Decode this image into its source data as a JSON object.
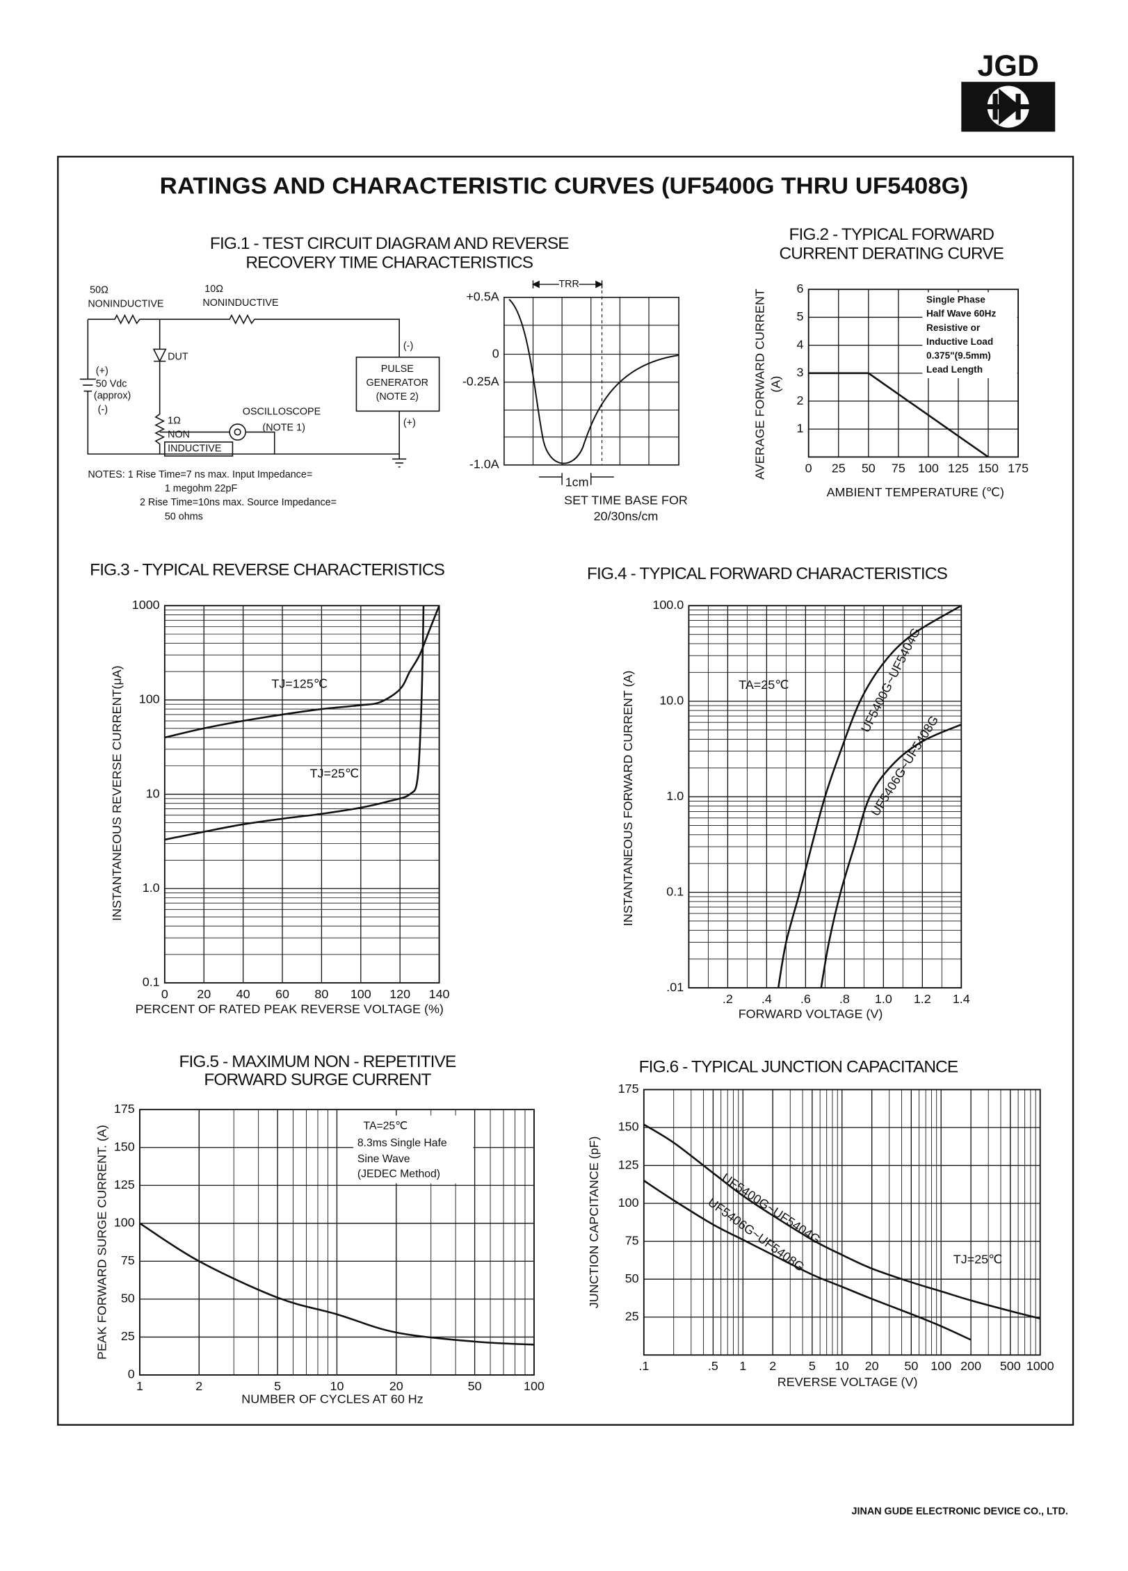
{
  "header": {
    "logo": "JGD"
  },
  "title": "RATINGS AND CHARACTERISTIC CURVES (UF5400G THRU UF5408G)",
  "fig1": {
    "title": [
      "FIG.1 - TEST CIRCUIT DIAGRAM AND REVERSE",
      "RECOVERY TIME CHARACTERISTICS"
    ],
    "circuit": {
      "r1_value": "50Ω",
      "r1_type": "NONINDUCTIVE",
      "r2_value": "10Ω",
      "r2_type": "NONINDUCTIVE",
      "source": [
        "(+)",
        "50 Vdc",
        "(approx)",
        "(-)"
      ],
      "dut": "DUT",
      "generator": [
        "PULSE",
        "GENERATOR",
        "(NOTE 2)"
      ],
      "generator_minus": "(-)",
      "generator_plus": "(+)",
      "r3": [
        "1Ω",
        "NON",
        "INDUCTIVE"
      ],
      "scope": [
        "OSCILLOSCOPE",
        "(NOTE 1)"
      ]
    },
    "notes": [
      "NOTES: 1 Rise Time=7 ns max. Input Impedance=",
      "1 megohm 22pF",
      "2 Rise Time=10ns max. Source Impedance=",
      "50 ohms"
    ],
    "waveform": {
      "trr": "TRR",
      "levels": [
        "+0.5A",
        "0",
        "-0.25A",
        "-1.0A"
      ],
      "scale": "1cm",
      "caption": [
        "SET TIME BASE FOR",
        "20/30ns/cm"
      ]
    }
  },
  "chart_data": [
    {
      "type": "line",
      "title": [
        "FIG.2 - TYPICAL FORWARD",
        "CURRENT DERATING CURVE"
      ],
      "ylabel": [
        "AVERAGE FORWARD CURRENT",
        "(A)"
      ],
      "xlabel": "AMBIENT TEMPERATURE (℃)",
      "xlim": [
        0,
        175
      ],
      "xticks": [
        0,
        25,
        50,
        75,
        100,
        125,
        150,
        175
      ],
      "ylim": [
        0,
        6
      ],
      "yticks": [
        1,
        2,
        3,
        4,
        5,
        6
      ],
      "grid": true,
      "annotations": [
        "Single Phase",
        "Half Wave 60Hz",
        "Resistive or",
        "Inductive Load",
        "0.375\"(9.5mm)",
        "Lead Length"
      ],
      "series": [
        {
          "color": "#111111",
          "x": [
            0,
            50,
            150
          ],
          "values": [
            3,
            3,
            0
          ]
        }
      ]
    },
    {
      "type": "line",
      "title": [
        "FIG.3 - TYPICAL REVERSE CHARACTERISTICS"
      ],
      "ylabel": "INSTANTANEOUS REVERSE CURRENT(μA)",
      "xlabel": "PERCENT OF RATED  PEAK REVERSE VOLTAGE (%)",
      "xlim": [
        0,
        140
      ],
      "xticks": [
        0,
        20,
        40,
        60,
        80,
        100,
        120,
        140
      ],
      "ylim": [
        0.1,
        1000
      ],
      "yscale": "log",
      "yticks": [
        0.1,
        {
          "value": 1,
          "label": "1.0"
        },
        10,
        100,
        1000
      ],
      "grid": true,
      "minor_grid": [
        "y"
      ],
      "series": [
        {
          "name": "TJ=125℃",
          "color": "#111111",
          "x": [
            0,
            20,
            40,
            60,
            80,
            100,
            110,
            120,
            125,
            130,
            135,
            140
          ],
          "values": [
            40,
            50,
            60,
            70,
            80,
            88,
            95,
            130,
            200,
            300,
            550,
            1000
          ]
        },
        {
          "name": "TJ=25℃",
          "color": "#111111",
          "x": [
            0,
            20,
            40,
            60,
            80,
            100,
            115,
            125,
            129,
            131,
            132
          ],
          "values": [
            3.3,
            4,
            4.8,
            5.5,
            6.2,
            7.2,
            8.5,
            10,
            15,
            100,
            1000
          ]
        }
      ]
    },
    {
      "type": "line",
      "title": [
        "FIG.4 - TYPICAL FORWARD CHARACTERISTICS"
      ],
      "ylabel": "INSTANTANEOUS FORWARD CURRENT (A)",
      "xlabel": "FORWARD VOLTAGE (V)",
      "xlim": [
        0,
        1.4
      ],
      "xticks": [
        {
          "value": 0.2,
          "label": ".2"
        },
        {
          "value": 0.4,
          "label": ".4"
        },
        {
          "value": 0.6,
          "label": ".6"
        },
        {
          "value": 0.8,
          "label": ".8"
        },
        {
          "value": 1,
          "label": "1.0"
        },
        1.2,
        1.4
      ],
      "ylim": [
        0.01,
        100
      ],
      "yscale": "log",
      "yticks": [
        {
          "value": 0.01,
          "label": ".01"
        },
        0.1,
        {
          "value": 1,
          "label": "1.0"
        },
        {
          "value": 10,
          "label": "10.0"
        },
        {
          "value": 100,
          "label": "100.0"
        }
      ],
      "grid": true,
      "minor_grid": [
        "x",
        "y"
      ],
      "annotations": [
        "TA=25℃"
      ],
      "series": [
        {
          "name": "UF5400G~UF5404G",
          "color": "#111111",
          "x": [
            0.46,
            0.5,
            0.57,
            0.63,
            0.7,
            0.78,
            0.88,
            1.0,
            1.15,
            1.4
          ],
          "values": [
            0.01,
            0.03,
            0.1,
            0.3,
            1,
            3,
            10,
            25,
            50,
            100
          ]
        },
        {
          "name": "UF5406G~UF5408G",
          "color": "#111111",
          "x": [
            0.68,
            0.72,
            0.78,
            0.85,
            0.93,
            1.05,
            1.2,
            1.4
          ],
          "values": [
            0.01,
            0.03,
            0.1,
            0.3,
            1,
            2.2,
            3.8,
            5.7
          ]
        }
      ]
    },
    {
      "type": "line",
      "title": [
        "FIG.5 - MAXIMUM NON - REPETITIVE",
        "FORWARD SURGE CURRENT"
      ],
      "ylabel": "PEAK FORWARD SURGE CURRENT. (A)",
      "xlabel": "NUMBER OF CYCLES AT 60 Hz",
      "xlim": [
        1,
        100
      ],
      "xscale": "log",
      "xticks": [
        1,
        2,
        5,
        10,
        20,
        50,
        100
      ],
      "ylim": [
        0,
        175
      ],
      "yticks": [
        0,
        25,
        50,
        75,
        100,
        125,
        150,
        175
      ],
      "grid": true,
      "minor_grid": [
        "x"
      ],
      "annotations": [
        "TA=25℃",
        "8.3ms Single Hafe",
        "Sine Wave",
        "(JEDEC Method)"
      ],
      "series": [
        {
          "color": "#111111",
          "x": [
            1,
            2,
            5,
            10,
            20,
            50,
            100
          ],
          "values": [
            100,
            75,
            51,
            40,
            28,
            22,
            20
          ]
        }
      ]
    },
    {
      "type": "line",
      "title": [
        "FIG.6 - TYPICAL JUNCTION CAPACITANCE"
      ],
      "ylabel": "JUNCTION CAPCITANCE (pF)",
      "xlabel": "REVERSE VOLTAGE (V)",
      "xlim": [
        0.1,
        1000
      ],
      "xscale": "log",
      "xticks": [
        {
          "value": 0.1,
          "label": ".1"
        },
        {
          "value": 0.5,
          "label": ".5"
        },
        1,
        2,
        5,
        10,
        20,
        50,
        100,
        200,
        500,
        1000
      ],
      "ylim": [
        0,
        175
      ],
      "yticks": [
        25,
        50,
        75,
        100,
        125,
        150,
        175
      ],
      "grid": true,
      "minor_grid": [
        "x"
      ],
      "annotations": [
        "TJ=25℃"
      ],
      "series": [
        {
          "name": "UF5400G~UF5404G",
          "color": "#111111",
          "x": [
            0.1,
            0.2,
            0.5,
            1,
            2,
            5,
            10,
            20,
            50,
            100,
            200,
            500,
            1000
          ],
          "values": [
            152,
            140,
            120,
            105,
            92,
            76,
            66,
            57,
            48,
            42,
            36,
            29,
            24
          ]
        },
        {
          "name": "UF5406G~UF5408G",
          "color": "#111111",
          "x": [
            0.1,
            0.2,
            0.5,
            1,
            2,
            5,
            10,
            20,
            50,
            100,
            200
          ],
          "values": [
            115,
            102,
            86,
            76,
            66,
            53,
            45,
            37,
            27,
            19,
            10
          ]
        }
      ]
    }
  ],
  "footer": {
    "company": "JINAN GUDE ELECTRONIC DEVICE CO., LTD."
  }
}
